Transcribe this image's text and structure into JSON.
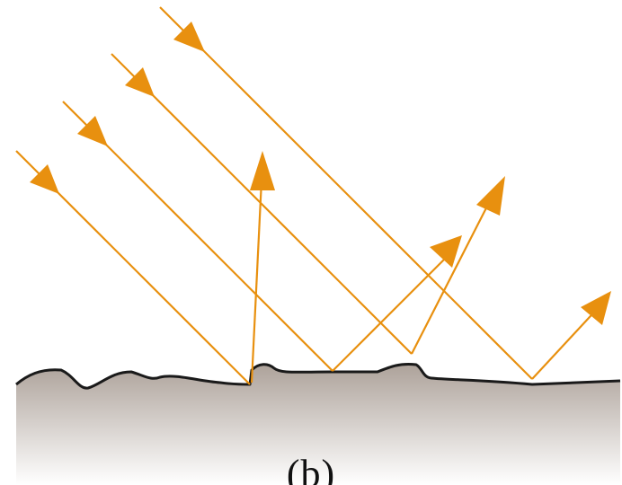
{
  "figure": {
    "panel_label": "(b)"
  },
  "colors": {
    "ray": "#E8900F",
    "surface_line": "#1a1a1a",
    "ground_top": "#ADA29A",
    "ground_bottom": "#FFFFFF",
    "background": "#FFFFFF"
  },
  "rays": [
    {
      "name": "ray-1",
      "reflection_direction": "up-slightly-right"
    },
    {
      "name": "ray-2",
      "reflection_direction": "up-right"
    },
    {
      "name": "ray-3",
      "reflection_direction": "up-right"
    },
    {
      "name": "ray-4",
      "reflection_direction": "up-right"
    }
  ]
}
